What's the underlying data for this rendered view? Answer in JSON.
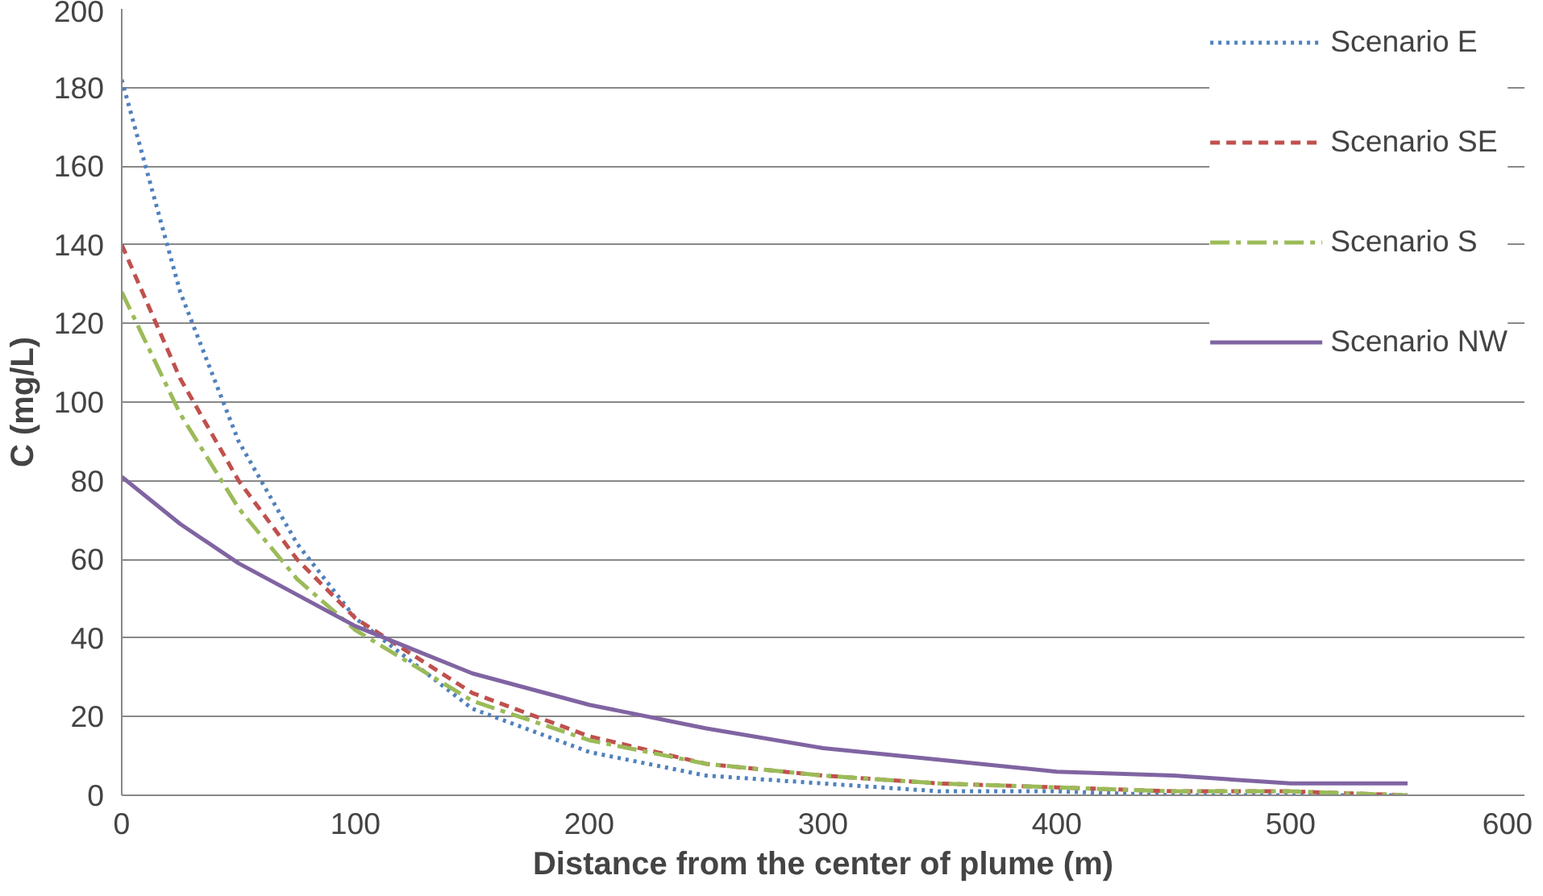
{
  "chart_data": {
    "type": "line",
    "xlabel": "Distance from the center of plume (m)",
    "ylabel": "C (mg/L)",
    "x": [
      0,
      25,
      50,
      75,
      100,
      150,
      200,
      250,
      300,
      350,
      400,
      450,
      500,
      550
    ],
    "xlim": [
      0,
      600
    ],
    "xticks": [
      0,
      100,
      200,
      300,
      400,
      500,
      600
    ],
    "ylim": [
      0,
      200
    ],
    "yticks": [
      0,
      20,
      40,
      60,
      80,
      100,
      120,
      140,
      160,
      180,
      200
    ],
    "grid": "y",
    "legend": "top right",
    "marker": "none",
    "series": [
      {
        "name": "Scenario E",
        "color": "#4f81bd",
        "line_style": "dotted",
        "values": [
          182,
          128,
          90,
          64,
          45,
          22,
          11,
          5,
          3,
          1,
          1,
          0,
          0,
          0
        ]
      },
      {
        "name": "Scenario SE",
        "color": "#c0504d",
        "line_style": "dashed",
        "values": [
          140,
          106,
          80,
          60,
          45,
          26,
          15,
          8,
          5,
          3,
          2,
          1,
          1,
          0
        ]
      },
      {
        "name": "Scenario S",
        "color": "#9bbb59",
        "line_style": "dashdot",
        "values": [
          128,
          97,
          73,
          55,
          42,
          24,
          14,
          8,
          5,
          3,
          2,
          1,
          1,
          0
        ]
      },
      {
        "name": "Scenario NW",
        "color": "#8064a2",
        "line_style": "solid",
        "values": [
          81,
          69,
          59,
          51,
          43,
          31,
          23,
          17,
          12,
          9,
          6,
          5,
          3,
          3
        ]
      }
    ]
  }
}
